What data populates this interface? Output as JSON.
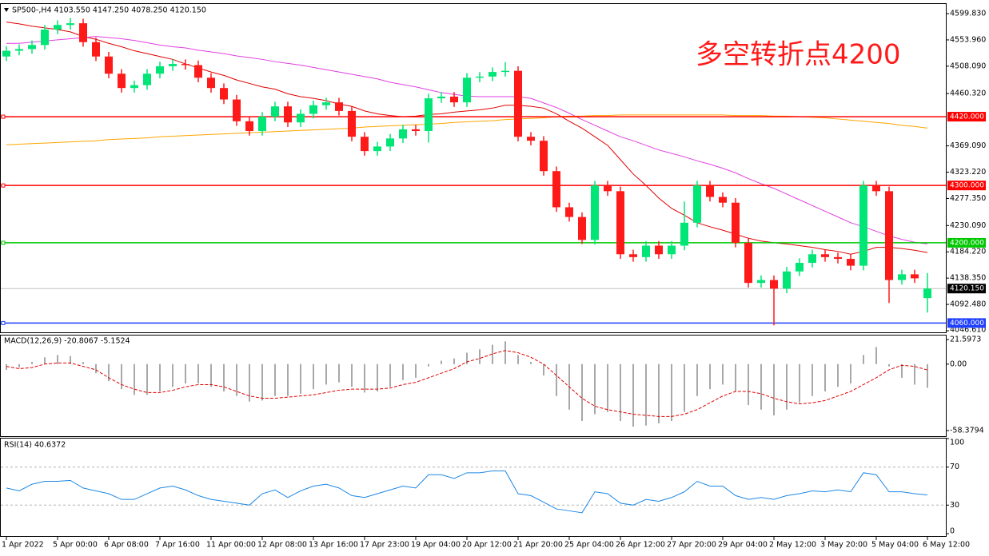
{
  "chart_data": [
    {
      "type": "candlestick",
      "title": "SP500-,H4  4103.550 4147.250 4078.250 4120.150",
      "annotation": "多空转折点4200",
      "categories": [
        "1 Apr 2022",
        null,
        null,
        null,
        "5 Apr 00:00",
        null,
        null,
        null,
        "6 Apr 08:00",
        null,
        null,
        null,
        "7 Apr 16:00",
        null,
        null,
        null,
        "11 Apr 00:00",
        null,
        null,
        null,
        "12 Apr 08:00",
        null,
        null,
        null,
        "13 Apr 16:00",
        null,
        null,
        null,
        "17 Apr 23:00",
        null,
        null,
        null,
        "19 Apr 04:00",
        null,
        null,
        null,
        "20 Apr 12:00",
        null,
        null,
        null,
        "21 Apr 20:00",
        null,
        null,
        null,
        "25 Apr 04:00",
        null,
        null,
        null,
        "26 Apr 12:00",
        null,
        null,
        null,
        "27 Apr 20:00",
        null,
        null,
        null,
        "29 Apr 04:00",
        null,
        null,
        null,
        "2 May 12:00",
        null,
        null,
        null,
        "3 May 20:00",
        null,
        null,
        null,
        "5 May 04:00",
        null,
        null,
        null,
        "6 May 12:00"
      ],
      "open": [
        4525,
        4535,
        4538,
        4545,
        4572,
        4580,
        4583,
        4550,
        4525,
        4495,
        4470,
        4475,
        4495,
        4508,
        4512,
        4510,
        4488,
        4470,
        4450,
        4412,
        4395,
        4420,
        4438,
        4410,
        4425,
        4440,
        4445,
        4430,
        4385,
        4360,
        4368,
        4382,
        4398,
        4395,
        4452,
        4455,
        4445,
        4488,
        4490,
        4498,
        4500,
        4385,
        4378,
        4325,
        4262,
        4245,
        4205,
        4300,
        4290,
        4180,
        4175,
        4195,
        4180,
        4195,
        4235,
        4300,
        4280,
        4270,
        4200,
        4130,
        4135,
        4120,
        4150,
        4165,
        4180,
        4175,
        4172,
        4160,
        4300,
        4290,
        4135,
        4145,
        4103.55
      ],
      "high": [
        4543,
        4546,
        4553,
        4580,
        4588,
        4592,
        4591,
        4558,
        4533,
        4503,
        4483,
        4503,
        4516,
        4520,
        4520,
        4518,
        4496,
        4478,
        4458,
        4420,
        4428,
        4446,
        4446,
        4433,
        4448,
        4453,
        4453,
        4438,
        4393,
        4376,
        4390,
        4406,
        4406,
        4460,
        4463,
        4463,
        4496,
        4498,
        4506,
        4515,
        4508,
        4393,
        4386,
        4333,
        4270,
        4253,
        4308,
        4308,
        4298,
        4188,
        4203,
        4203,
        4203,
        4272,
        4308,
        4308,
        4288,
        4278,
        4208,
        4143,
        4143,
        4158,
        4173,
        4188,
        4188,
        4183,
        4180,
        4308,
        4308,
        4298,
        4153,
        4153,
        4147.25
      ],
      "low": [
        4517,
        4527,
        4530,
        4537,
        4564,
        4572,
        4542,
        4517,
        4487,
        4462,
        4462,
        4467,
        4487,
        4500,
        4502,
        4480,
        4462,
        4442,
        4404,
        4387,
        4387,
        4412,
        4402,
        4402,
        4417,
        4432,
        4422,
        4377,
        4352,
        4352,
        4360,
        4374,
        4387,
        4375,
        4444,
        4437,
        4437,
        4480,
        4482,
        4490,
        4377,
        4370,
        4317,
        4254,
        4237,
        4198,
        4197,
        4282,
        4172,
        4167,
        4167,
        4172,
        4172,
        4187,
        4227,
        4272,
        4262,
        4192,
        4122,
        4122,
        4056,
        4112,
        4142,
        4157,
        4167,
        4164,
        4152,
        4152,
        4282,
        4095,
        4127,
        4130,
        4078.25
      ],
      "close": [
        4535,
        4538,
        4545,
        4572,
        4580,
        4583,
        4550,
        4525,
        4495,
        4470,
        4475,
        4495,
        4508,
        4512,
        4510,
        4488,
        4470,
        4450,
        4412,
        4395,
        4420,
        4438,
        4410,
        4425,
        4440,
        4445,
        4430,
        4385,
        4360,
        4368,
        4382,
        4398,
        4395,
        4452,
        4455,
        4445,
        4488,
        4490,
        4498,
        4500,
        4385,
        4378,
        4325,
        4262,
        4245,
        4205,
        4300,
        4290,
        4180,
        4175,
        4195,
        4180,
        4195,
        4235,
        4300,
        4280,
        4270,
        4200,
        4130,
        4135,
        4120,
        4150,
        4165,
        4180,
        4175,
        4172,
        4160,
        4300,
        4290,
        4135,
        4145,
        4138,
        4120.15
      ],
      "up_color": "#00e676",
      "down_color": "#ff1a1a",
      "series": [
        {
          "color": "#e00000",
          "values": [
            4585,
            4582,
            4578,
            4575,
            4572,
            4568,
            4560,
            4555,
            4548,
            4542,
            4535,
            4530,
            4525,
            4520,
            4512,
            4505,
            4498,
            4492,
            4484,
            4478,
            4472,
            4468,
            4460,
            4455,
            4452,
            4448,
            4442,
            4438,
            4430,
            4425,
            4422,
            4420,
            4421,
            4424,
            4425,
            4428,
            4430,
            4432,
            4435,
            4440,
            4440,
            4438,
            4435,
            4425,
            4412,
            4400,
            4385,
            4370,
            4345,
            4320,
            4300,
            4278,
            4260,
            4248,
            4235,
            4228,
            4222,
            4215,
            4208,
            4203,
            4200,
            4198,
            4195,
            4192,
            4188,
            4185,
            4180,
            4185,
            4192,
            4192,
            4190,
            4187,
            4183
          ]
        },
        {
          "color": "#e040e0",
          "values": [
            4548,
            4548,
            4550,
            4552,
            4554,
            4556,
            4558,
            4560,
            4558,
            4556,
            4553,
            4549,
            4545,
            4542,
            4540,
            4536,
            4533,
            4530,
            4526,
            4523,
            4520,
            4516,
            4513,
            4510,
            4506,
            4502,
            4498,
            4494,
            4490,
            4486,
            4480,
            4476,
            4472,
            4467,
            4462,
            4459,
            4456,
            4455,
            4455,
            4455,
            4455,
            4452,
            4444,
            4436,
            4426,
            4415,
            4405,
            4395,
            4385,
            4378,
            4370,
            4362,
            4356,
            4350,
            4343,
            4337,
            4330,
            4322,
            4312,
            4303,
            4295,
            4285,
            4275,
            4265,
            4255,
            4245,
            4235,
            4228,
            4220,
            4212,
            4206,
            4201,
            4198
          ]
        },
        {
          "color": "#ffa500",
          "values": [
            4371,
            4372,
            4373,
            4374,
            4375,
            4376,
            4377,
            4378,
            4380,
            4381,
            4382,
            4383,
            4385,
            4386,
            4387,
            4388,
            4389,
            4390,
            4391,
            4392,
            4393,
            4394,
            4395,
            4396,
            4397,
            4398,
            4399,
            4400,
            4402,
            4403,
            4404,
            4405,
            4406,
            4407,
            4408,
            4410,
            4411,
            4412,
            4413,
            4415,
            4416,
            4417,
            4418,
            4420,
            4421,
            4421,
            4422,
            4422,
            4423,
            4423,
            4423,
            4423,
            4423,
            4423,
            4423,
            4423,
            4423,
            4422,
            4422,
            4422,
            4421,
            4421,
            4420,
            4419,
            4418,
            4416,
            4414,
            4412,
            4410,
            4408,
            4405,
            4403,
            4400
          ]
        }
      ],
      "levels": [
        {
          "value": 4420,
          "label": "4420.000",
          "color": "#ff0000"
        },
        {
          "value": 4300,
          "label": "4300.000",
          "color": "#ff0000"
        },
        {
          "value": 4200,
          "label": "4200.000",
          "color": "#00c800"
        },
        {
          "value": 4060,
          "label": "4060.000",
          "color": "#2040ff"
        }
      ],
      "price_line": {
        "value": 4120.15,
        "label": "4120.150",
        "color": "#c0c0c0"
      },
      "ylim": [
        4043.8,
        4616.6
      ],
      "yticks": [
        {
          "value": 4599.83,
          "label": "4599.830"
        },
        {
          "value": 4553.96,
          "label": "4553.960"
        },
        {
          "value": 4508.09,
          "label": "4508.090"
        },
        {
          "value": 4460.32,
          "label": "4460.320"
        },
        {
          "value": 4369.09,
          "label": "4369.090"
        },
        {
          "value": 4323.22,
          "label": "4323.220"
        },
        {
          "value": 4277.35,
          "label": "4277.350"
        },
        {
          "value": 4230.09,
          "label": "4230.090"
        },
        {
          "value": 4184.22,
          "label": "4184.220"
        },
        {
          "value": 4138.35,
          "label": "4138.350"
        },
        {
          "value": 4092.48,
          "label": "4092.480"
        },
        {
          "value": 4046.61,
          "label": "4046.610"
        }
      ],
      "grid": false
    },
    {
      "type": "macd",
      "title": "MACD(12,26,9) -20.8067 -5.1524",
      "series": [
        {
          "type": "histogram",
          "color": "#a8a8a8",
          "values": [
            -5,
            -3,
            2,
            6,
            8,
            7,
            2,
            -8,
            -15,
            -22,
            -27,
            -27,
            -24,
            -20,
            -17,
            -17,
            -20,
            -24,
            -28,
            -33,
            -32,
            -28,
            -28,
            -26,
            -22,
            -18,
            -16,
            -20,
            -25,
            -24,
            -20,
            -14,
            -12,
            -2,
            3,
            5,
            10,
            13,
            17,
            20,
            8,
            2,
            -10,
            -28,
            -40,
            -50,
            -44,
            -42,
            -50,
            -55,
            -54,
            -52,
            -50,
            -42,
            -28,
            -22,
            -18,
            -24,
            -36,
            -40,
            -45,
            -40,
            -34,
            -28,
            -24,
            -20,
            -17,
            8,
            15,
            -2,
            -12,
            -18,
            -20.8067
          ]
        },
        {
          "type": "line",
          "color": "#e00000",
          "dashed": true,
          "values": [
            -2,
            -4,
            -3,
            0,
            1,
            1,
            -2,
            -5,
            -12,
            -18,
            -22,
            -25,
            -25,
            -23,
            -20,
            -18,
            -18,
            -20,
            -24,
            -28,
            -30,
            -30,
            -29,
            -28,
            -27,
            -25,
            -23,
            -22,
            -22,
            -22,
            -21,
            -18,
            -16,
            -12,
            -8,
            -4,
            2,
            5,
            9,
            12,
            10,
            6,
            0,
            -10,
            -20,
            -30,
            -37,
            -40,
            -42,
            -44,
            -45,
            -46,
            -46,
            -44,
            -40,
            -34,
            -28,
            -24,
            -24,
            -26,
            -30,
            -33,
            -35,
            -34,
            -32,
            -28,
            -24,
            -18,
            -12,
            -5,
            -1,
            -2,
            -5.1524
          ]
        }
      ],
      "ylim": [
        -63.33,
        25.14
      ],
      "yticks": [
        21.5973,
        {
          "value": 0,
          "label": "0.00"
        },
        -58.3794
      ]
    },
    {
      "type": "line",
      "title": "RSI(14) 40.6372",
      "series": [
        {
          "color": "#1e88e5",
          "values": [
            48,
            45,
            52,
            55,
            55,
            56,
            48,
            45,
            42,
            36,
            36,
            42,
            48,
            50,
            46,
            40,
            36,
            34,
            32,
            30,
            42,
            46,
            38,
            45,
            50,
            52,
            48,
            40,
            38,
            42,
            46,
            50,
            48,
            62,
            62,
            58,
            64,
            64,
            66,
            66,
            42,
            40,
            33,
            26,
            24,
            22,
            44,
            42,
            32,
            30,
            36,
            34,
            38,
            44,
            55,
            50,
            50,
            40,
            36,
            38,
            36,
            40,
            42,
            45,
            44,
            46,
            44,
            64,
            62,
            44,
            44,
            42,
            40.6372
          ]
        }
      ],
      "ylim": [
        0,
        100
      ],
      "yticks": [
        100,
        70,
        30,
        0
      ]
    }
  ]
}
